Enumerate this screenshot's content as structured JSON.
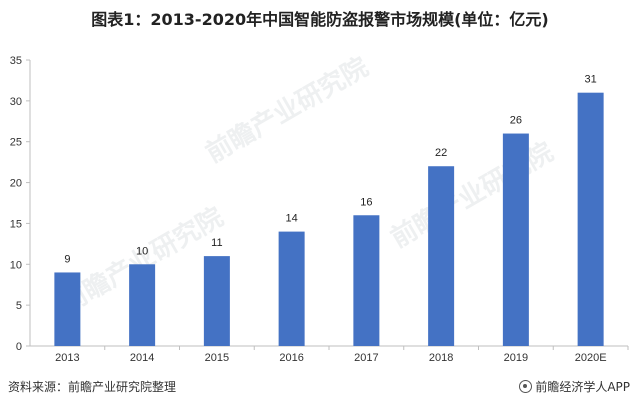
{
  "title": "图表1：2013-2020年中国智能防盗报警市场规模(单位：亿元)",
  "footer": {
    "source": "资料来源：前瞻产业研究院整理",
    "brand": "前瞻经济学人APP"
  },
  "watermark_text": "前瞻产业研究院",
  "colors": {
    "bar": "#4472C4",
    "axis": "#bfbfbf"
  },
  "chart_data": {
    "type": "bar",
    "categories": [
      "2013",
      "2014",
      "2015",
      "2016",
      "2017",
      "2018",
      "2019",
      "2020E"
    ],
    "values": [
      9,
      10,
      11,
      14,
      16,
      22,
      26,
      31
    ],
    "ylim": [
      0,
      35
    ],
    "yticks": [
      0,
      5,
      10,
      15,
      20,
      25,
      30,
      35
    ],
    "xlabel": "",
    "ylabel": "",
    "grid": false,
    "legend": "none"
  }
}
